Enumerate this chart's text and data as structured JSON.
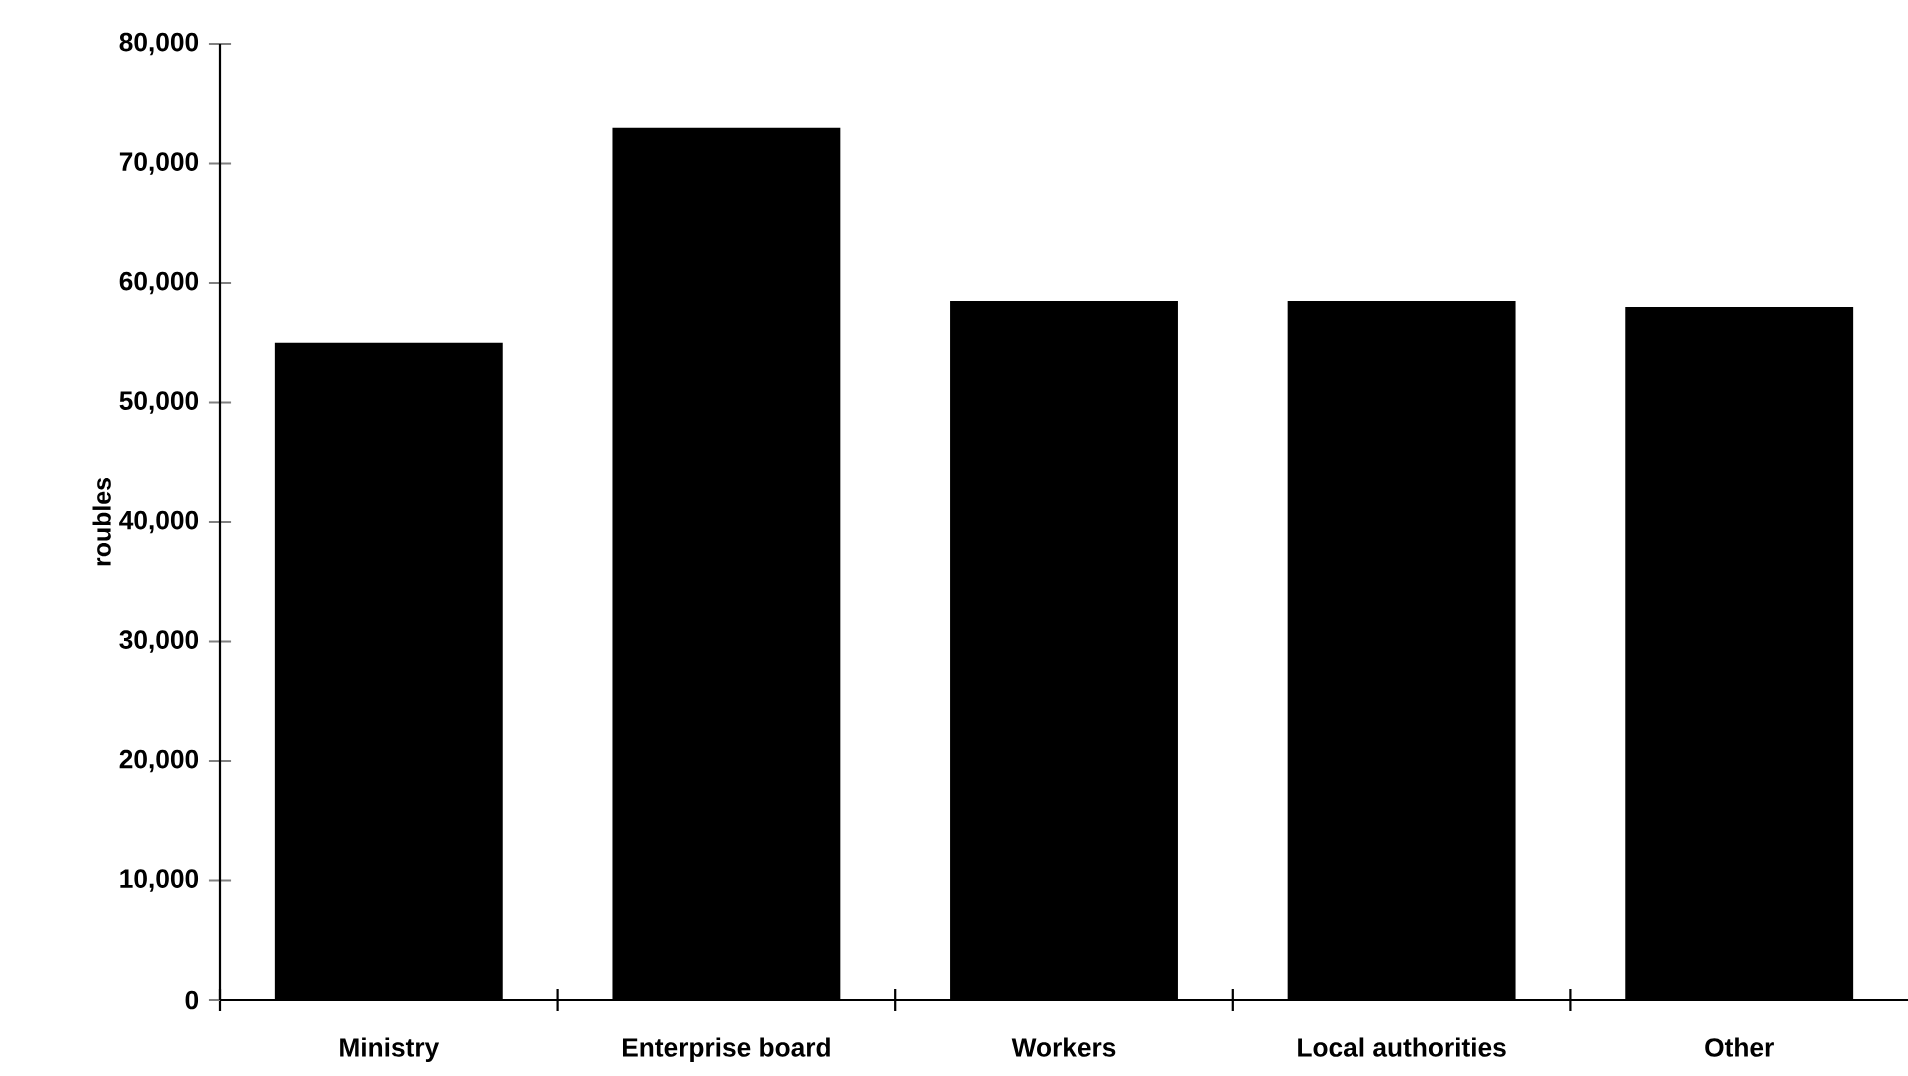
{
  "chart_data": {
    "type": "bar",
    "ylabel": "roubles",
    "categories": [
      "Ministry",
      "Enterprise board",
      "Workers",
      "Local authorities",
      "Other"
    ],
    "values": [
      55000,
      73000,
      58500,
      58500,
      58000
    ],
    "color": "#000000",
    "ylim": [
      0,
      80000
    ],
    "yticks": [
      0,
      {
        "value": 10000,
        "label": "10,000"
      },
      {
        "value": 20000,
        "label": "20,000"
      },
      {
        "value": 30000,
        "label": "30,000"
      },
      {
        "value": 40000,
        "label": "40,000"
      },
      {
        "value": 50000,
        "label": "50,000"
      },
      {
        "value": 60000,
        "label": "60,000"
      },
      {
        "value": 70000,
        "label": "70,000"
      },
      {
        "value": 80000,
        "label": "80,000"
      }
    ],
    "grid": false
  }
}
